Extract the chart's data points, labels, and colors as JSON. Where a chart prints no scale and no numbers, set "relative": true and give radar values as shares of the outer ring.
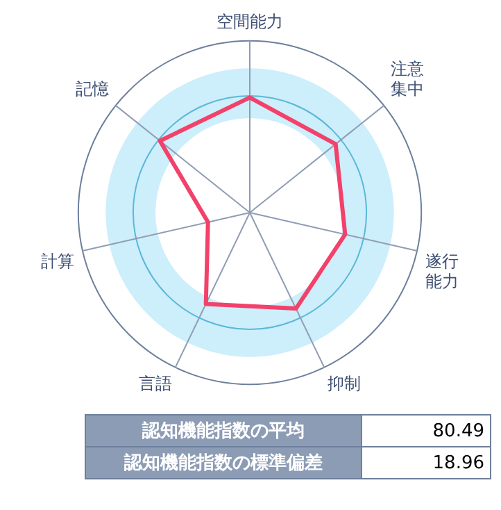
{
  "chart_data": {
    "type": "radar",
    "relative": true,
    "categories": [
      "空間能力",
      "注意集中",
      "遂行能力",
      "抑制",
      "言語",
      "計算",
      "記憶"
    ],
    "series": [
      {
        "color": "#f2416a",
        "values": [
          0.67,
          0.64,
          0.57,
          0.62,
          0.59,
          0.25,
          0.67
        ]
      }
    ],
    "marker": "none",
    "legend": false,
    "annotations": [
      "認知機能指数の平均",
      "80.49",
      "認知機能指数の標準偏差",
      "18.96"
    ]
  }
}
